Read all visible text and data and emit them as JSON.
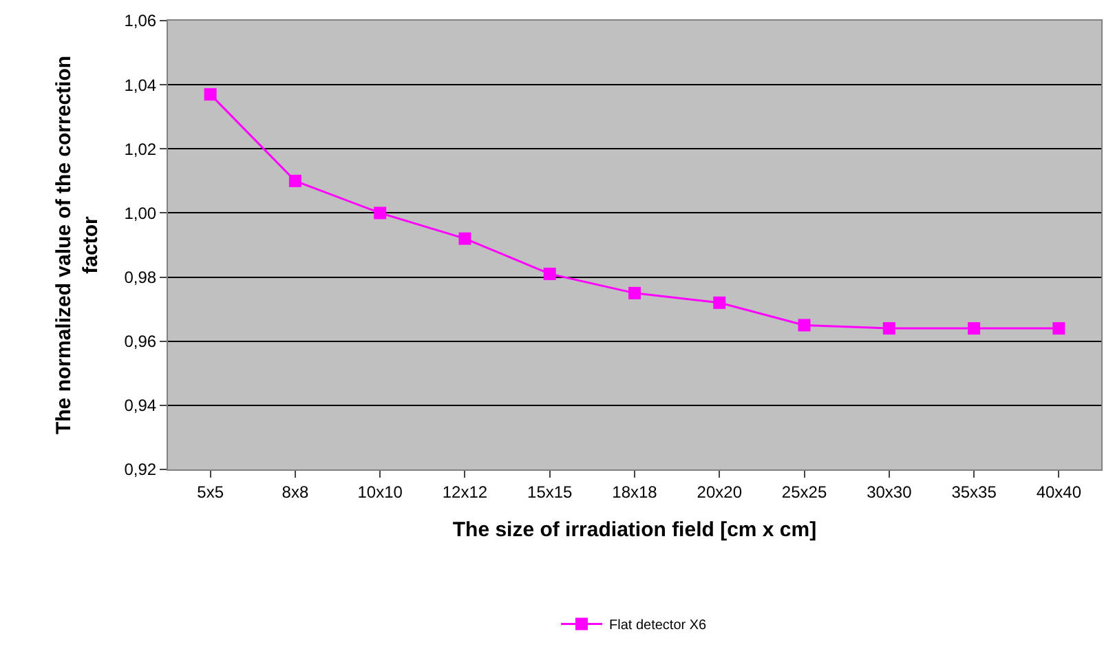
{
  "chart_data": {
    "type": "line",
    "xlabel": "The size of irradiation field [cm x cm]",
    "ylabel": "The normalized value of the correction factor",
    "categories": [
      "5x5",
      "8x8",
      "10x10",
      "12x12",
      "15x15",
      "18x18",
      "20x20",
      "25x25",
      "30x30",
      "35x35",
      "40x40"
    ],
    "series": [
      {
        "name": "Flat detector X6",
        "color": "#ff00ff",
        "values": [
          1.037,
          1.01,
          1.0,
          0.992,
          0.981,
          0.975,
          0.972,
          0.965,
          0.964,
          0.964,
          0.964
        ]
      }
    ],
    "ylim": [
      0.92,
      1.06
    ],
    "yticks": [
      {
        "value": 0.92,
        "label": "0,92"
      },
      {
        "value": 0.94,
        "label": "0,94"
      },
      {
        "value": 0.96,
        "label": "0,96"
      },
      {
        "value": 0.98,
        "label": "0,98"
      },
      {
        "value": 1.0,
        "label": "1,00"
      },
      {
        "value": 1.02,
        "label": "1,02"
      },
      {
        "value": 1.04,
        "label": "1,04"
      },
      {
        "value": 1.06,
        "label": "1,06"
      }
    ],
    "grid": "y",
    "legend": "bottom",
    "marker": "square",
    "line_style": "solid"
  }
}
